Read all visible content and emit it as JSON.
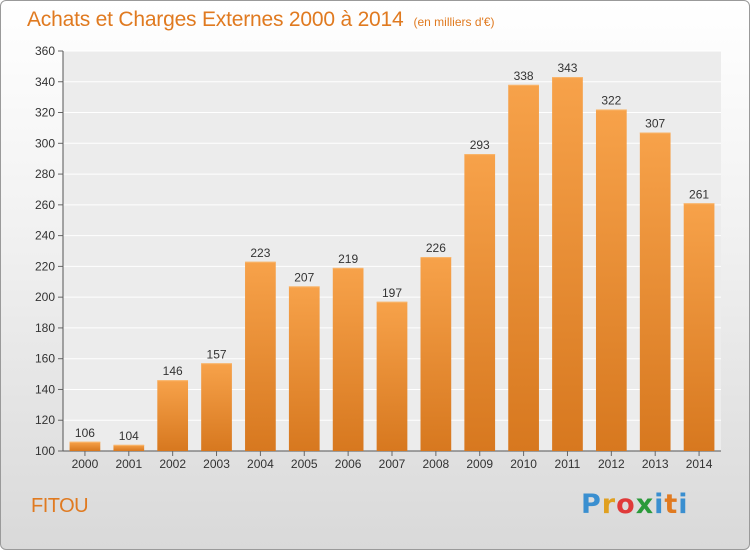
{
  "title": "Achats et Charges Externes 2000 à 2014",
  "subtitle": "(en milliers d'€)",
  "commune": "FITOU",
  "logo": {
    "letters": [
      "P",
      "r",
      "o",
      "x",
      "i",
      "t",
      "i"
    ],
    "colors": [
      "#3a8fd0",
      "#e0a020",
      "#e03a3a",
      "#2a9a3a",
      "#3a8fd0",
      "#e07a20",
      "#3a8fd0"
    ]
  },
  "colors": {
    "bar_top": "#f7a24a",
    "bar_bottom": "#d7781f",
    "accent": "#e07a20"
  },
  "chart_data": {
    "type": "bar",
    "title": "Achats et Charges Externes 2000 à 2014",
    "subtitle": "(en milliers d'€)",
    "categories": [
      "2000",
      "2001",
      "2002",
      "2003",
      "2004",
      "2005",
      "2006",
      "2007",
      "2008",
      "2009",
      "2010",
      "2011",
      "2012",
      "2013",
      "2014"
    ],
    "values": [
      106,
      104,
      146,
      157,
      223,
      207,
      219,
      197,
      226,
      293,
      338,
      343,
      322,
      307,
      261
    ],
    "ylim": [
      100,
      360
    ],
    "yticks": [
      100,
      120,
      140,
      160,
      180,
      200,
      220,
      240,
      260,
      280,
      300,
      320,
      340,
      360
    ],
    "grid": true,
    "data_labels": true
  }
}
